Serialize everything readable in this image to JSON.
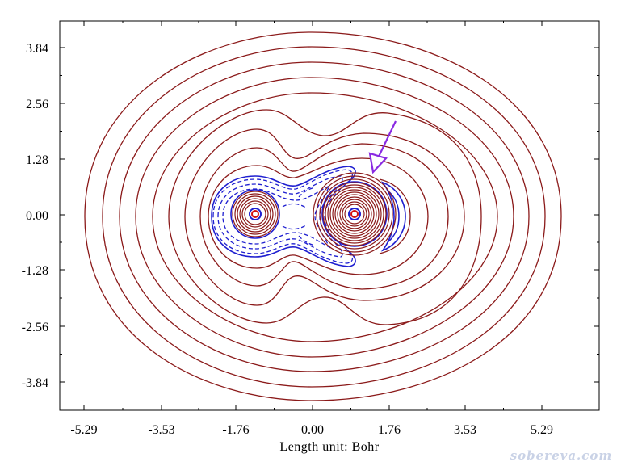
{
  "figure": {
    "xlabel": "Length unit: Bohr",
    "watermark": "sobereva.com",
    "contour_colors": {
      "positive": "#8b1a1a",
      "negative": "#1f1fd0",
      "arrow": "#8a2be2"
    }
  },
  "chart_data": {
    "type": "contour",
    "x_ticks": [
      "-5.29",
      "-3.53",
      "-1.76",
      "0.00",
      "1.76",
      "3.53",
      "5.29"
    ],
    "y_ticks": [
      "3.84",
      "2.56",
      "1.28",
      "0.00",
      "-1.28",
      "-2.56",
      "-3.84"
    ],
    "x_tick_values": [
      -5.29,
      -3.53,
      -1.76,
      0.0,
      1.76,
      3.53,
      5.29
    ],
    "y_tick_values": [
      3.84,
      2.56,
      1.28,
      0.0,
      -1.28,
      -2.56,
      -3.84
    ],
    "xlim": [
      -5.9,
      6.6
    ],
    "ylim": [
      -4.6,
      4.3
    ],
    "nuclei": [
      {
        "x": -1.3,
        "y": 0.0
      },
      {
        "x": 0.95,
        "y": 0.0
      }
    ],
    "grid": false
  }
}
